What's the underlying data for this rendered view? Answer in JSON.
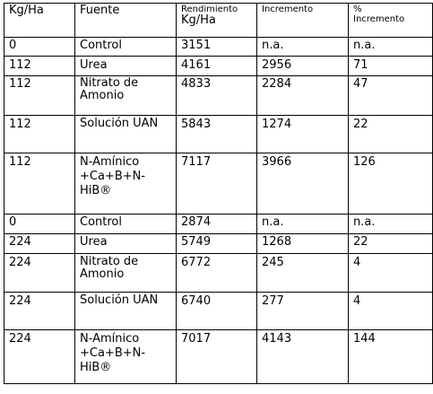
{
  "table": {
    "headers": {
      "kg_ha": "Kg/Ha",
      "fuente": "Fuente",
      "rendimiento_small": "Rendimiento",
      "rendimiento_unit": "Kg/Ha",
      "incremento": "Incremento",
      "pct_symbol": "%",
      "pct_label": "Incremento"
    },
    "rows": [
      {
        "kg": "0",
        "fuente": "Control",
        "rend": "3151",
        "inc": "n.a.",
        "pct": "n.a."
      },
      {
        "kg": "112",
        "fuente": "Urea",
        "rend": "4161",
        "inc": "2956",
        "pct": "71"
      },
      {
        "kg": "112",
        "fuente": "Nitrato de Amonio",
        "rend": "4833",
        "inc": "2284",
        "pct": "47"
      },
      {
        "kg": "112",
        "fuente": "Solución UAN",
        "rend": "5843",
        "inc": "1274",
        "pct": "22"
      },
      {
        "kg": "112",
        "fuente": "N-Amínico +Ca+B+N-HiB®",
        "rend": "7117",
        "inc": "3966",
        "pct": "126"
      },
      {
        "kg": "0",
        "fuente": "Control",
        "rend": "2874",
        "inc": "n.a.",
        "pct": "n.a."
      },
      {
        "kg": "224",
        "fuente": "Urea",
        "rend": "5749",
        "inc": "1268",
        "pct": "22"
      },
      {
        "kg": "224",
        "fuente": "Nitrato de Amonio",
        "rend": "6772",
        "inc": "245",
        "pct": "4"
      },
      {
        "kg": "224",
        "fuente": "Solución UAN",
        "rend": "6740",
        "inc": "277",
        "pct": "4"
      },
      {
        "kg": "224",
        "fuente": "N-Amínico +Ca+B+N-HiB®",
        "rend": "7017",
        "inc": "4143",
        "pct": "144"
      }
    ]
  }
}
